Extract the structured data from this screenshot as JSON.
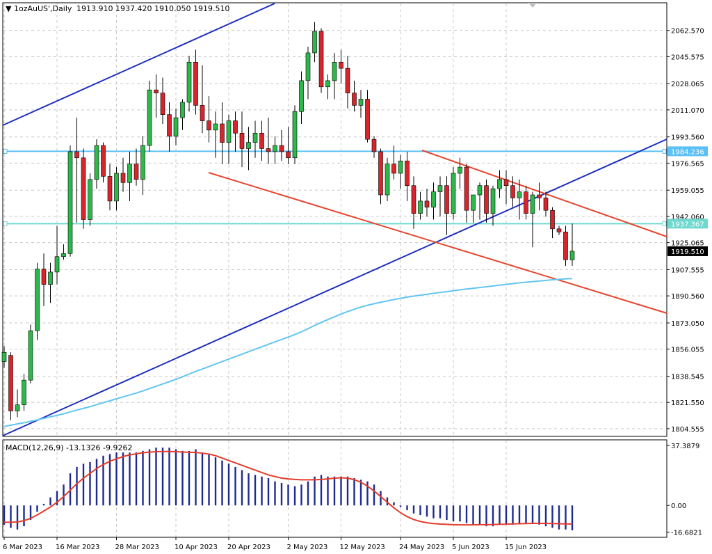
{
  "header": {
    "arrow": "▼",
    "symbol": "1ozAuUS',Daily",
    "ohlc": "1913.910 1937.420 1910.050 1919.510"
  },
  "price_axis": {
    "ticks": [
      "2062.570",
      "2045.575",
      "2028.065",
      "2011.070",
      "1993.560",
      "1976.565",
      "1959.055",
      "1942.060",
      "1925.065",
      "1907.555",
      "1890.560",
      "1873.050",
      "1856.055",
      "1838.545",
      "1821.550",
      "1804.555"
    ],
    "range": [
      1800.0,
      2080.0
    ],
    "level_labels": [
      "1984.236",
      "1937.367"
    ],
    "level_values": [
      1984.236,
      1937.367
    ],
    "current_label": "1919.510",
    "current_value": 1919.51
  },
  "macd": {
    "label": "MACD(12,26,9) -13.1326 -9.9262",
    "ticks": [
      "37.3879",
      "0.00",
      "-16.6821"
    ],
    "tick_values": [
      37.3879,
      0.0,
      -16.6821
    ]
  },
  "dates": [
    "6 Mar 2023",
    "16 Mar 2023",
    "28 Mar 2023",
    "10 Apr 2023",
    "20 Apr 2023",
    "2 May 2023",
    "12 May 2023",
    "24 May 2023",
    "5 Jun 2023",
    "15 Jun 2023"
  ],
  "colors": {
    "bull": "#2db84a",
    "bear": "#d7262b",
    "channel": "#1f2fbf",
    "downtrend": "#e8452e",
    "ma": "#62c5f2",
    "level_blue": "#5bc0f5",
    "level_teal": "#6fd9d0",
    "hist": "#1f2a8f",
    "signal": "#e63c2a"
  },
  "chart_data": {
    "type": "candlestick",
    "candles": [
      [
        1848,
        1858,
        1844,
        1854
      ],
      [
        1852,
        1854,
        1810,
        1816
      ],
      [
        1816,
        1830,
        1812,
        1820
      ],
      [
        1820,
        1840,
        1816,
        1836
      ],
      [
        1836,
        1872,
        1834,
        1868
      ],
      [
        1868,
        1912,
        1862,
        1908
      ],
      [
        1908,
        1918,
        1884,
        1898
      ],
      [
        1898,
        1912,
        1886,
        1906
      ],
      [
        1906,
        1936,
        1898,
        1916
      ],
      [
        1916,
        1924,
        1914,
        1918
      ],
      [
        1918,
        1988,
        1916,
        1984
      ],
      [
        1984,
        2006,
        1938,
        1980
      ],
      [
        1980,
        1986,
        1934,
        1940
      ],
      [
        1940,
        1970,
        1936,
        1966
      ],
      [
        1966,
        1992,
        1960,
        1988
      ],
      [
        1988,
        1990,
        1964,
        1968
      ],
      [
        1968,
        1976,
        1946,
        1952
      ],
      [
        1952,
        1974,
        1946,
        1970
      ],
      [
        1970,
        1980,
        1958,
        1964
      ],
      [
        1964,
        1984,
        1952,
        1976
      ],
      [
        1976,
        1986,
        1962,
        1966
      ],
      [
        1966,
        1994,
        1956,
        1988
      ],
      [
        1988,
        2030,
        1984,
        2024
      ],
      [
        2024,
        2034,
        2006,
        2022
      ],
      [
        2022,
        2032,
        2002,
        2008
      ],
      [
        2008,
        2016,
        1984,
        1994
      ],
      [
        1994,
        2012,
        1988,
        2006
      ],
      [
        2006,
        2018,
        1998,
        2016
      ],
      [
        2016,
        2046,
        2010,
        2042
      ],
      [
        2042,
        2050,
        2008,
        2014
      ],
      [
        2014,
        2040,
        1996,
        2004
      ],
      [
        2004,
        2020,
        1990,
        1998
      ],
      [
        1998,
        2010,
        1980,
        2002
      ],
      [
        2002,
        2016,
        1976,
        1990
      ],
      [
        1990,
        2008,
        1976,
        2004
      ],
      [
        2004,
        2010,
        1984,
        1996
      ],
      [
        1996,
        2010,
        1974,
        1986
      ],
      [
        1986,
        2000,
        1972,
        1990
      ],
      [
        1990,
        2004,
        1980,
        1996
      ],
      [
        1996,
        2004,
        1978,
        1986
      ],
      [
        1986,
        2006,
        1976,
        1984
      ],
      [
        1984,
        1994,
        1976,
        1988
      ],
      [
        1988,
        1998,
        1978,
        1984
      ],
      [
        1984,
        2000,
        1976,
        1980
      ],
      [
        1980,
        2014,
        1976,
        2010
      ],
      [
        2010,
        2036,
        2002,
        2030
      ],
      [
        2030,
        2052,
        2018,
        2048
      ],
      [
        2048,
        2068,
        2042,
        2062
      ],
      [
        2062,
        2064,
        2022,
        2026
      ],
      [
        2026,
        2034,
        2018,
        2030
      ],
      [
        2030,
        2048,
        2018,
        2042
      ],
      [
        2042,
        2050,
        2028,
        2038
      ],
      [
        2038,
        2046,
        2012,
        2022
      ],
      [
        2022,
        2030,
        2010,
        2014
      ],
      [
        2014,
        2024,
        2006,
        2018
      ],
      [
        2018,
        2024,
        1990,
        1992
      ],
      [
        1992,
        1994,
        1980,
        1984
      ],
      [
        1984,
        1986,
        1950,
        1956
      ],
      [
        1956,
        1980,
        1952,
        1976
      ],
      [
        1976,
        1988,
        1966,
        1970
      ],
      [
        1970,
        1982,
        1960,
        1978
      ],
      [
        1978,
        1984,
        1952,
        1962
      ],
      [
        1962,
        1968,
        1934,
        1944
      ],
      [
        1944,
        1958,
        1940,
        1952
      ],
      [
        1952,
        1960,
        1942,
        1948
      ],
      [
        1948,
        1964,
        1940,
        1958
      ],
      [
        1958,
        1968,
        1942,
        1962
      ],
      [
        1962,
        1968,
        1930,
        1944
      ],
      [
        1944,
        1974,
        1940,
        1970
      ],
      [
        1970,
        1980,
        1960,
        1974
      ],
      [
        1974,
        1976,
        1938,
        1946
      ],
      [
        1946,
        1956,
        1938,
        1956
      ],
      [
        1956,
        1964,
        1940,
        1962
      ],
      [
        1962,
        1966,
        1938,
        1944
      ],
      [
        1944,
        1962,
        1936,
        1960
      ],
      [
        1960,
        1972,
        1954,
        1966
      ],
      [
        1966,
        1972,
        1950,
        1962
      ],
      [
        1962,
        1968,
        1948,
        1954
      ],
      [
        1954,
        1966,
        1940,
        1958
      ],
      [
        1958,
        1962,
        1940,
        1944
      ],
      [
        1944,
        1958,
        1922,
        1956
      ],
      [
        1956,
        1964,
        1946,
        1954
      ],
      [
        1954,
        1958,
        1942,
        1946
      ],
      [
        1946,
        1948,
        1928,
        1934
      ],
      [
        1934,
        1936,
        1930,
        1932
      ],
      [
        1932,
        1936,
        1910,
        1914
      ],
      [
        1913.91,
        1937.42,
        1910.05,
        1919.51
      ]
    ],
    "ma": [
      1806,
      1806.8,
      1807.6,
      1808.4,
      1809.3,
      1810.2,
      1811.2,
      1812.2,
      1813.2,
      1814.2,
      1815.4,
      1816.6,
      1817.7,
      1818.8,
      1820.1,
      1821.4,
      1822.6,
      1823.9,
      1825.1,
      1826.4,
      1827.6,
      1829,
      1830.5,
      1832,
      1833.5,
      1835,
      1836.5,
      1838.2,
      1839.9,
      1841.6,
      1843.2,
      1844.8,
      1846.4,
      1848,
      1849.6,
      1851.2,
      1852.8,
      1854.4,
      1856,
      1857.6,
      1859.2,
      1860.8,
      1862.3,
      1863.9,
      1865.5,
      1867.3,
      1869.3,
      1871.4,
      1873.4,
      1875.2,
      1877,
      1878.8,
      1880.4,
      1881.9,
      1883.3,
      1884.5,
      1885.5,
      1886.4,
      1887.3,
      1888.2,
      1889,
      1889.8,
      1890.4,
      1891,
      1891.6,
      1892.2,
      1892.8,
      1893.3,
      1893.9,
      1894.5,
      1895,
      1895.5,
      1896,
      1896.5,
      1897,
      1897.5,
      1898,
      1898.5,
      1899,
      1899.4,
      1899.8,
      1900.2,
      1900.6,
      1901,
      1901.3,
      1901.6,
      1901.8
    ],
    "macd_hist": [
      -12,
      -14,
      -15,
      -13,
      -9,
      -4,
      1,
      5,
      9,
      13,
      20,
      24,
      26,
      27,
      29,
      31,
      32,
      33,
      33,
      33,
      33,
      34,
      35,
      36,
      36,
      36,
      35,
      34,
      34,
      35,
      33,
      32,
      30,
      28,
      26,
      24,
      22,
      20,
      19,
      18,
      17,
      15,
      14,
      13,
      12,
      13,
      15,
      18,
      19,
      18,
      18,
      18,
      18,
      17,
      16,
      15,
      13,
      9,
      5,
      2,
      -1,
      -3,
      -5,
      -6,
      -7,
      -8,
      -8,
      -9,
      -10,
      -10,
      -11,
      -12,
      -12,
      -13,
      -13,
      -12,
      -12,
      -12,
      -11,
      -11,
      -11,
      -12,
      -13,
      -14,
      -15,
      -15,
      -15.5
    ],
    "macd_signal": [
      -10.5,
      -10.5,
      -10.3,
      -9.5,
      -8,
      -6,
      -3.5,
      -1,
      2,
      5.5,
      9.5,
      13.5,
      17,
      20,
      23,
      25.5,
      27.5,
      29,
      30.5,
      31.5,
      32.2,
      32.8,
      33.2,
      33.5,
      33.6,
      33.6,
      33.5,
      33.3,
      33.1,
      33,
      32.6,
      32,
      31,
      29.5,
      28,
      26.5,
      25,
      23.5,
      22,
      20.5,
      19,
      18,
      17,
      16.5,
      16.2,
      16,
      16,
      16,
      16.2,
      16.5,
      17,
      17.2,
      17,
      16,
      14.5,
      12,
      9,
      5.5,
      2,
      -1.5,
      -4.5,
      -7,
      -8.8,
      -10,
      -10.8,
      -11.3,
      -11.6,
      -11.8,
      -12,
      -12.1,
      -12.1,
      -12.1,
      -12,
      -12,
      -11.9,
      -11.8,
      -11.7,
      -11.5,
      -11.4,
      -11.3,
      -11.2,
      -11.2,
      -11.2,
      -11.3,
      -11.4,
      -11.5,
      -11.6
    ],
    "macd_range": [
      -19,
      40
    ],
    "date_index": [
      0,
      8,
      17,
      26,
      34,
      43,
      51,
      60,
      68,
      76
    ]
  }
}
